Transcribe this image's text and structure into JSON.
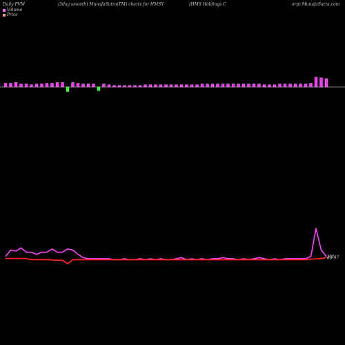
{
  "header": {
    "left": "Daily PVM",
    "middle": "(5day smooth) MunafaSutra(TM) charts for HMSY",
    "right": "(HMS Holdings C",
    "right2": "orp) MunafaSutra.com"
  },
  "legend": [
    {
      "label": "Volume",
      "color": "#ff66ff"
    },
    {
      "label": "Price",
      "color": "#ff9999"
    }
  ],
  "chart_data": {
    "type": "line",
    "title": "",
    "volume": {
      "type": "bar",
      "color_up": "#ff33ff",
      "color_down": "#33ff33",
      "values": [
        5,
        5,
        6,
        4,
        4,
        3,
        4,
        4,
        5,
        5,
        6,
        6,
        -6,
        6,
        5,
        4,
        4,
        4,
        -5,
        4,
        3,
        2,
        2,
        2,
        2,
        2,
        2,
        3,
        3,
        3,
        3,
        3,
        3,
        3,
        3,
        3,
        3,
        3,
        4,
        4,
        4,
        4,
        4,
        4,
        4,
        4,
        4,
        4,
        4,
        4,
        3,
        3,
        3,
        4,
        4,
        4,
        4,
        4,
        4,
        5,
        13,
        12,
        11
      ],
      "annotations": []
    },
    "series": [
      {
        "name": "",
        "color": "#ff44ff",
        "y": [
          3.2,
          3.5,
          3.45,
          3.6,
          3.4,
          3.4,
          3.3,
          3.4,
          3.4,
          3.55,
          3.4,
          3.4,
          3.55,
          3.5,
          3.3,
          3.15,
          3.1,
          3.1,
          3.1,
          3.1,
          3.1,
          3.05,
          3.05,
          3.1,
          3.05,
          3.05,
          3.1,
          3.05,
          3.1,
          3.05,
          3.1,
          3.05,
          3.05,
          3.1,
          3.15,
          3.05,
          3.1,
          3.05,
          3.1,
          3.05,
          3.1,
          3.1,
          3.15,
          3.1,
          3.1,
          3.05,
          3.1,
          3.05,
          3.1,
          3.15,
          3.1,
          3.05,
          3.1,
          3.05,
          3.1,
          3.1,
          3.1,
          3.1,
          3.1,
          3.2,
          4.5,
          3.5,
          3.2
        ],
        "end_label": "3M"
      },
      {
        "name": "",
        "color": "#ff2222",
        "y": [
          86.8,
          86.8,
          86.8,
          86.8,
          86.8,
          86.6,
          86.6,
          86.6,
          86.6,
          86.55,
          86.5,
          86.5,
          85.9,
          86.6,
          86.6,
          86.6,
          86.6,
          86.6,
          86.6,
          86.6,
          86.6,
          86.6,
          86.6,
          86.6,
          86.6,
          86.6,
          86.6,
          86.6,
          86.6,
          86.6,
          86.6,
          86.6,
          86.6,
          86.6,
          86.6,
          86.6,
          86.6,
          86.6,
          86.6,
          86.6,
          86.6,
          86.6,
          86.6,
          86.6,
          86.6,
          86.6,
          86.6,
          86.6,
          86.6,
          86.6,
          86.6,
          86.6,
          86.6,
          86.6,
          86.6,
          86.6,
          86.6,
          86.6,
          86.6,
          86.7,
          86.75,
          86.8,
          86.97
        ],
        "end_label": "86.97"
      }
    ],
    "grid": false,
    "legend_position": "top-left"
  }
}
